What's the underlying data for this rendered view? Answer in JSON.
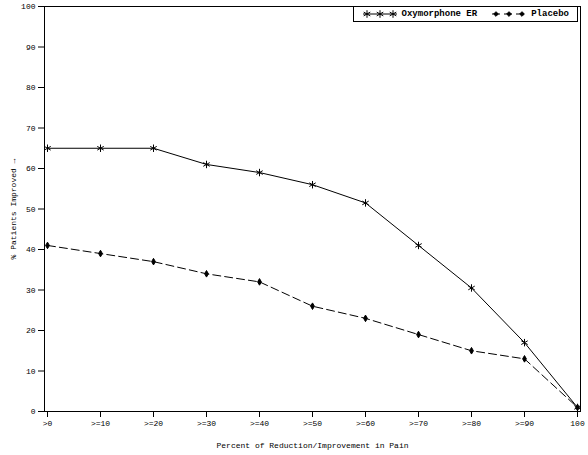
{
  "chart_data": {
    "type": "line",
    "x_label": "Percent of Reduction/Improvement in Pain",
    "y_label": "% Patients Improved",
    "categories": [
      ">0",
      ">=10",
      ">=20",
      ">=30",
      ">=40",
      ">=50",
      ">=60",
      ">=70",
      ">=80",
      ">=90",
      "100"
    ],
    "series": [
      {
        "name": "Oxymorphone ER",
        "color": "#000000",
        "marker": "asterisk",
        "line_style": "solid",
        "values": [
          65,
          65,
          65,
          61,
          59,
          56,
          51.5,
          41,
          30.5,
          17,
          1
        ]
      },
      {
        "name": "Placebo",
        "color": "#000000",
        "marker": "diamond",
        "line_style": "dashed",
        "values": [
          41,
          39,
          37,
          34,
          32,
          26,
          23,
          19,
          15,
          13,
          1
        ]
      }
    ],
    "ylim": [
      0,
      100
    ],
    "yticks": [
      0,
      10,
      20,
      30,
      40,
      50,
      60,
      70,
      80,
      90,
      100
    ],
    "legend": "top-right",
    "grid": false
  }
}
